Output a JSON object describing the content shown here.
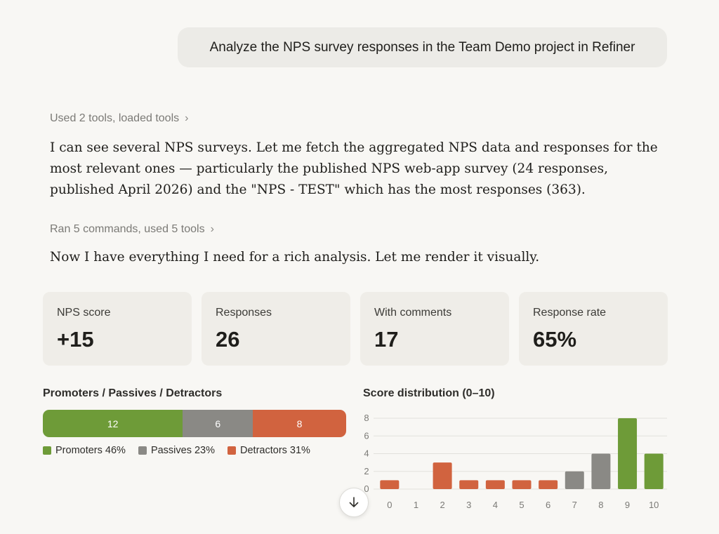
{
  "user_message": "Analyze the NPS survey responses in the Team Demo project in Refiner",
  "tool_summary_1": "Used 2 tools, loaded tools",
  "paragraph_1": "I can see several NPS surveys. Let me fetch the aggregated NPS data and responses for the most relevant ones — particularly the published NPS web-app survey (24 responses, published April 2026) and the \"NPS - TEST\" which has the most responses (363).",
  "tool_summary_2": "Ran 5 commands, used 5 tools",
  "paragraph_2": "Now I have everything I need for a rich analysis. Let me render it visually.",
  "stats": [
    {
      "label": "NPS score",
      "value": "+15"
    },
    {
      "label": "Responses",
      "value": "26"
    },
    {
      "label": "With comments",
      "value": "17"
    },
    {
      "label": "Response rate",
      "value": "65%"
    }
  ],
  "breakdown": {
    "title": "Promoters / Passives / Detractors",
    "segments": [
      {
        "name": "Promoters",
        "count": 12,
        "label": "12",
        "color": "#6e9b38"
      },
      {
        "name": "Passives",
        "count": 6,
        "label": "6",
        "color": "#8a8985"
      },
      {
        "name": "Detractors",
        "count": 8,
        "label": "8",
        "color": "#d1633f"
      }
    ],
    "legend": [
      {
        "label": "Promoters 46%",
        "color": "#6e9b38"
      },
      {
        "label": "Passives 23%",
        "color": "#8a8985"
      },
      {
        "label": "Detractors 31%",
        "color": "#d1633f"
      }
    ]
  },
  "chart_data": {
    "type": "bar",
    "title": "Score distribution (0–10)",
    "categories": [
      "0",
      "1",
      "2",
      "3",
      "4",
      "5",
      "6",
      "7",
      "8",
      "9",
      "10"
    ],
    "values": [
      1,
      0,
      3,
      1,
      1,
      1,
      1,
      2,
      4,
      8,
      4
    ],
    "bar_colors": [
      "#d1633f",
      "#d1633f",
      "#d1633f",
      "#d1633f",
      "#d1633f",
      "#d1633f",
      "#d1633f",
      "#8a8985",
      "#8a8985",
      "#6e9b38",
      "#6e9b38"
    ],
    "yticks": [
      "0",
      "2",
      "4",
      "6",
      "8"
    ],
    "ylim": [
      0,
      8
    ],
    "grid": true,
    "xlabel": "",
    "ylabel": ""
  },
  "icons": {
    "chevron": "chevron-right-icon",
    "scroll": "arrow-down-icon"
  }
}
